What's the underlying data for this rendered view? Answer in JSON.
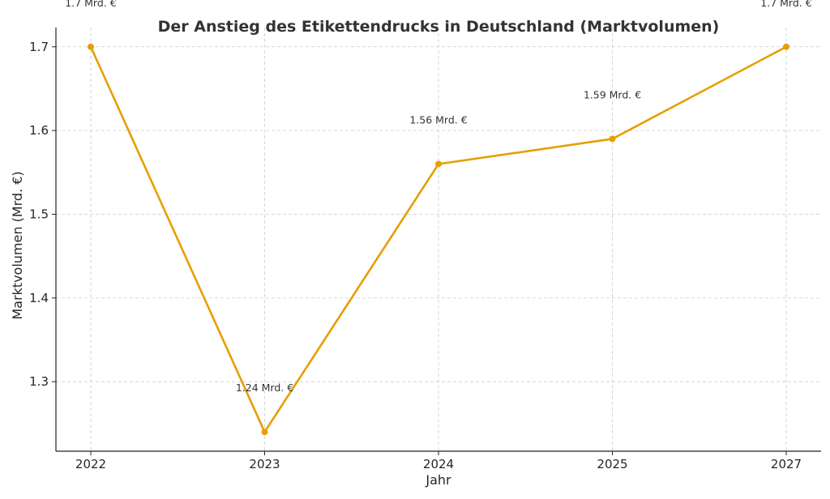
{
  "chart_data": {
    "type": "line",
    "title": "Der Anstieg des Etikettendrucks in Deutschland (Marktvolumen)",
    "xlabel": "Jahr",
    "ylabel": "Marktvolumen (Mrd. €)",
    "categories": [
      "2022",
      "2023",
      "2024",
      "2025",
      "2027"
    ],
    "values": [
      1.7,
      1.24,
      1.56,
      1.59,
      1.7
    ],
    "data_labels": [
      "1.7 Mrd. €",
      "1.24 Mrd. €",
      "1.56 Mrd. €",
      "1.59 Mrd. €",
      "1.7 Mrd. €"
    ],
    "yticks": [
      "1.3",
      "1.4",
      "1.5",
      "1.6",
      "1.7"
    ],
    "ylim": [
      1.217,
      1.723
    ],
    "grid": true,
    "line_color": "#E69F00",
    "marker_color": "#E69F00"
  }
}
